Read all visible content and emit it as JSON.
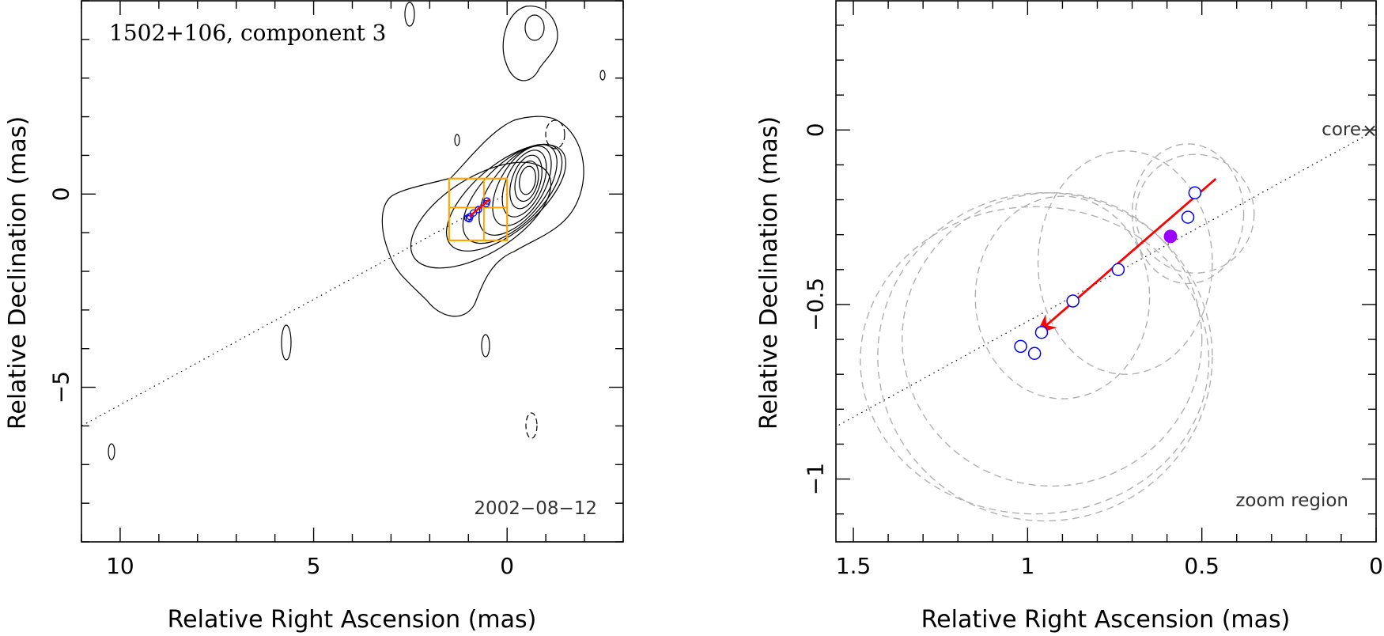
{
  "colors": {
    "axes": "#000000",
    "trajectory": "#ff0000",
    "position_markers": "#0000ff",
    "mean_marker": "#9b00ff",
    "zoom_box": "#ffa500",
    "error_ellipses": "#b0b0b0"
  },
  "chart_data": [
    {
      "type": "scatter",
      "panel": "left",
      "title": "1502+106, component 3",
      "epoch_label": "2002−08−12",
      "xlabel": "Relative Right Ascension (mas)",
      "ylabel": "Relative Declination (mas)",
      "xlim": [
        11,
        -3
      ],
      "ylim": [
        -9,
        5
      ],
      "xticks": [
        10,
        5,
        0
      ],
      "xtick_labels": [
        "10",
        "5",
        "0"
      ],
      "yticks": [
        0,
        -5
      ],
      "ytick_labels": [
        "0",
        "−5"
      ],
      "jet_axis": {
        "x": [
          0,
          11
        ],
        "y": [
          0,
          -6
        ]
      },
      "zoom_region": {
        "x": [
          0,
          1.5
        ],
        "y": [
          -1.2,
          0.4
        ]
      },
      "component_positions": {
        "x": [
          1.02,
          0.98,
          0.96,
          0.87,
          0.74,
          0.54,
          0.52
        ],
        "y": [
          -0.62,
          -0.64,
          -0.58,
          -0.49,
          -0.4,
          -0.25,
          -0.18
        ]
      },
      "motion_vector": {
        "from": [
          0.46,
          -0.14
        ],
        "to": [
          0.97,
          -0.58
        ]
      },
      "grid": false
    },
    {
      "type": "scatter",
      "panel": "right",
      "annotations": {
        "core": "core",
        "zoom": "zoom region"
      },
      "xlabel": "Relative Right Ascension (mas)",
      "ylabel": "Relative Declination (mas)",
      "xlim": [
        1.55,
        0
      ],
      "ylim": [
        -1.18,
        0.37
      ],
      "xticks": [
        1.5,
        1,
        0.5,
        0
      ],
      "xtick_labels": [
        "1.5",
        "1",
        "0.5",
        "0"
      ],
      "yticks": [
        0,
        -0.5,
        -1
      ],
      "ytick_labels": [
        "0",
        "−0.5",
        "−1"
      ],
      "jet_axis": {
        "x": [
          0,
          1.55
        ],
        "y": [
          0,
          -0.85
        ]
      },
      "component_positions": {
        "x": [
          1.02,
          0.98,
          0.96,
          0.87,
          0.74,
          0.54,
          0.52
        ],
        "y": [
          -0.62,
          -0.64,
          -0.58,
          -0.49,
          -0.4,
          -0.25,
          -0.18
        ]
      },
      "mean_position": {
        "x": 0.59,
        "y": -0.305
      },
      "motion_vector": {
        "from": [
          0.46,
          -0.14
        ],
        "to": [
          0.97,
          -0.58
        ]
      },
      "error_ellipses": [
        {
          "x": 0.95,
          "y": -0.65,
          "rx": 0.48,
          "ry": 0.47
        },
        {
          "x": 0.93,
          "y": -0.6,
          "rx": 0.43,
          "ry": 0.42
        },
        {
          "x": 0.98,
          "y": -0.66,
          "rx": 0.5,
          "ry": 0.44
        },
        {
          "x": 0.9,
          "y": -0.48,
          "rx": 0.25,
          "ry": 0.29
        },
        {
          "x": 0.72,
          "y": -0.38,
          "rx": 0.25,
          "ry": 0.32
        },
        {
          "x": 0.54,
          "y": -0.24,
          "rx": 0.16,
          "ry": 0.2
        },
        {
          "x": 0.52,
          "y": -0.24,
          "rx": 0.17,
          "ry": 0.17
        }
      ],
      "grid": false
    }
  ]
}
